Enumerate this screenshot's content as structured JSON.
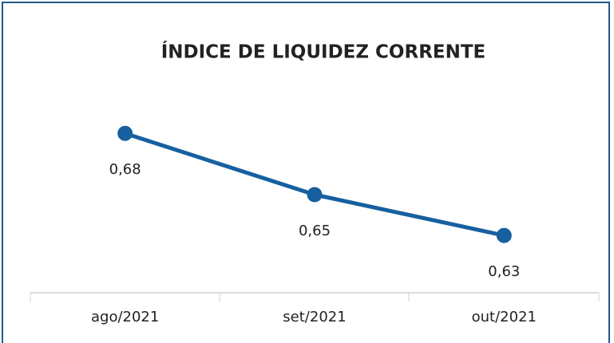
{
  "chart_data": {
    "type": "line",
    "title": "ÍNDICE DE LIQUIDEZ CORRENTE",
    "categories": [
      "ago/2021",
      "set/2021",
      "out/2021"
    ],
    "series": [
      {
        "name": null,
        "color": "#1660a0",
        "values": [
          0.68,
          0.65,
          0.63
        ],
        "value_labels": [
          "0,68",
          "0,65",
          "0,63"
        ]
      }
    ],
    "ylim": [
      0.6,
      0.7
    ]
  }
}
